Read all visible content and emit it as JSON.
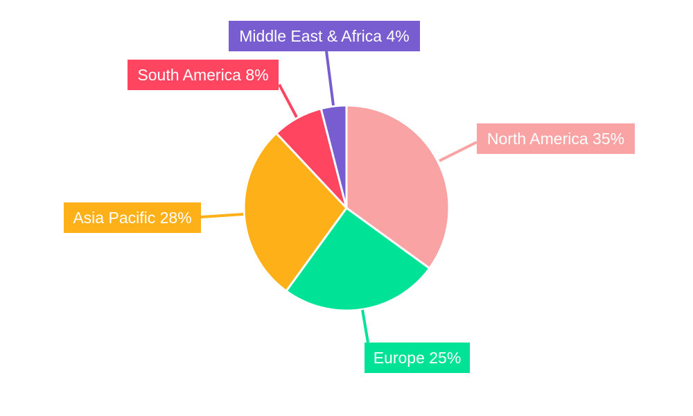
{
  "chart_data": {
    "type": "pie",
    "title": "",
    "start_angle_deg": 0,
    "direction": "clockwise",
    "legend": "none",
    "slices": [
      {
        "label": "North America",
        "value": 35,
        "text": "North America 35%",
        "color": "#F9A3A4"
      },
      {
        "label": "Europe",
        "value": 25,
        "text": "Europe 25%",
        "color": "#00E396"
      },
      {
        "label": "Asia Pacific",
        "value": 28,
        "text": "Asia Pacific 28%",
        "color": "#FEB019"
      },
      {
        "label": "South America",
        "value": 8,
        "text": "South America 8%",
        "color": "#FF4560"
      },
      {
        "label": "Middle East & Africa",
        "value": 4,
        "text": "Middle East & Africa 4%",
        "color": "#775DD0"
      }
    ]
  }
}
